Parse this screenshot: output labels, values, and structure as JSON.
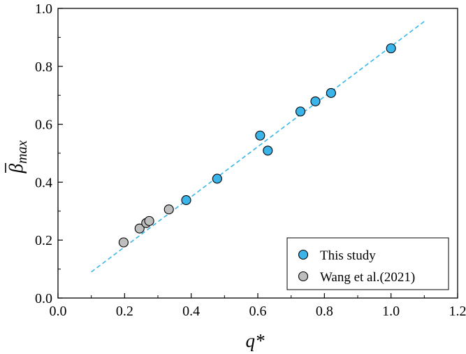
{
  "chart_data": {
    "type": "scatter",
    "xlabel": "q*",
    "ylabel_main": "β",
    "ylabel_sub": "max",
    "xlim": [
      0.0,
      1.2
    ],
    "ylim": [
      0.0,
      1.0
    ],
    "xticks": [
      "0.0",
      "0.2",
      "0.4",
      "0.6",
      "0.8",
      "1.0",
      "1.2"
    ],
    "yticks": [
      "0.0",
      "0.2",
      "0.4",
      "0.6",
      "0.8",
      "1.0"
    ],
    "grid": false,
    "legend_position": "bottom-right",
    "series": [
      {
        "name": "This study",
        "color": "#3BB4EA",
        "points": [
          {
            "x": 0.385,
            "y": 0.338
          },
          {
            "x": 0.478,
            "y": 0.412
          },
          {
            "x": 0.607,
            "y": 0.561
          },
          {
            "x": 0.63,
            "y": 0.509
          },
          {
            "x": 0.728,
            "y": 0.644
          },
          {
            "x": 0.773,
            "y": 0.679
          },
          {
            "x": 0.82,
            "y": 0.708
          },
          {
            "x": 1.0,
            "y": 0.862
          }
        ]
      },
      {
        "name": "Wang et al.(2021)",
        "color": "#BEBEBE",
        "points": [
          {
            "x": 0.197,
            "y": 0.192
          },
          {
            "x": 0.245,
            "y": 0.24
          },
          {
            "x": 0.265,
            "y": 0.259
          },
          {
            "x": 0.274,
            "y": 0.266
          },
          {
            "x": 0.333,
            "y": 0.306
          }
        ]
      }
    ],
    "fit_line": {
      "color": "#3BB4EA",
      "style": "dashed",
      "x": [
        0.1,
        1.1
      ],
      "y": [
        0.09,
        0.955
      ]
    }
  }
}
